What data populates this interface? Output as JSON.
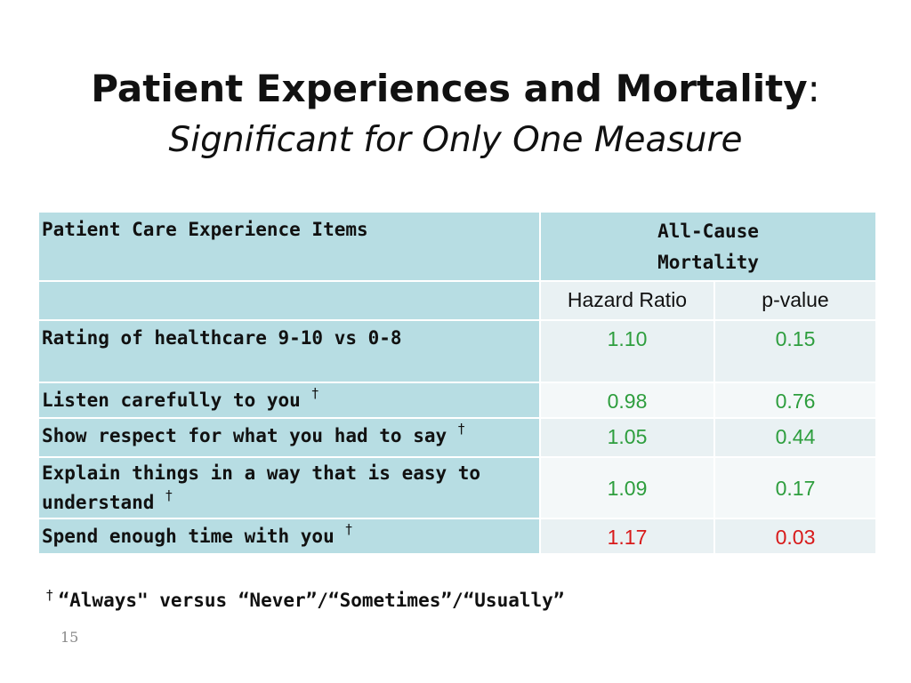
{
  "title": {
    "main": "Patient Experiences and Mortality",
    "colon": ":",
    "subtitle": "Significant for Only One Measure"
  },
  "table": {
    "header": {
      "items_label": "Patient Care Experience Items",
      "outcome_label_line1": "All-Cause",
      "outcome_label_line2": "Mortality",
      "hazard_ratio_label": "Hazard Ratio",
      "p_value_label": "p-value"
    },
    "rows": [
      {
        "item": "Rating of healthcare 9-10 vs 0-8",
        "dagger": "",
        "hazard_ratio": "1.10",
        "p_value": "0.15",
        "significant": false
      },
      {
        "item": "Listen carefully to you",
        "dagger": "†",
        "hazard_ratio": "0.98",
        "p_value": "0.76",
        "significant": false
      },
      {
        "item": "Show respect for what you had to say",
        "dagger": "†",
        "hazard_ratio": "1.05",
        "p_value": "0.44",
        "significant": false
      },
      {
        "item_line1": "Explain things in a way that is easy to",
        "item_line2": "understand",
        "dagger": "†",
        "hazard_ratio": "1.09",
        "p_value": "0.17",
        "significant": false
      },
      {
        "item": "Spend enough time with you",
        "dagger": "†",
        "hazard_ratio": "1.17",
        "p_value": "0.03",
        "significant": true
      }
    ]
  },
  "colors": {
    "header_bg": "#b7dde3",
    "value_bg_light": "#e9f1f3",
    "value_bg_lighter": "#f4f8f9",
    "nonsignificant_text": "#2e9e3e",
    "significant_text": "#d81a1a"
  },
  "footnote": {
    "mark": "†",
    "text": "“Always\" versus “Never”/“Sometimes”/“Usually”"
  },
  "slide_number": "15"
}
